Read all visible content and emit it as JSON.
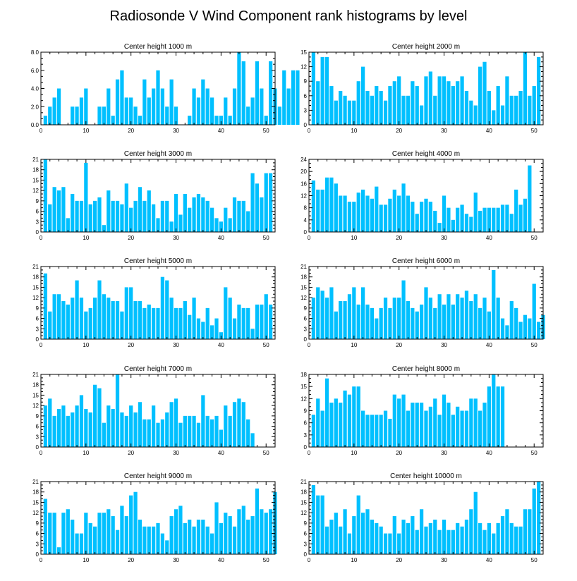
{
  "title": "Radiosonde V Wind Component rank histograms by level",
  "colors": {
    "bar": "#00c0ff",
    "axis": "#000000",
    "background": "#ffffff"
  },
  "chart_data": [
    {
      "type": "bar",
      "title": "Center height 1000 m",
      "x_ticks": [
        0,
        10,
        20,
        30,
        40,
        50
      ],
      "xlim": [
        0,
        52
      ],
      "y_ticks": [
        0,
        2,
        4,
        6,
        8
      ],
      "y_tick_labels": [
        "0.0",
        "2.0",
        "4.0",
        "6.0",
        "8.0"
      ],
      "ylim": [
        0,
        8
      ],
      "values": [
        1,
        2,
        3,
        4,
        0,
        0,
        2,
        2,
        3,
        4,
        0,
        0,
        2,
        2,
        4,
        1,
        5,
        6,
        3,
        3,
        2,
        1,
        5,
        3,
        4,
        6,
        4,
        2,
        5,
        2,
        0,
        0,
        1,
        4,
        3,
        5,
        4,
        3,
        1,
        1,
        3,
        1,
        4,
        8,
        7,
        2,
        3,
        7,
        4,
        1,
        7,
        4,
        2,
        6,
        4,
        6,
        6
      ]
    },
    {
      "type": "bar",
      "title": "Center height 2000 m",
      "x_ticks": [
        0,
        10,
        20,
        30,
        40,
        50
      ],
      "xlim": [
        0,
        52
      ],
      "y_ticks": [
        0,
        3,
        6,
        9,
        12,
        15
      ],
      "y_tick_labels": [
        "0",
        "3",
        "6",
        "9",
        "12",
        "15"
      ],
      "ylim": [
        0,
        15
      ],
      "values": [
        15,
        9,
        14,
        14,
        8,
        5,
        7,
        6,
        5,
        5,
        9,
        12,
        7,
        6,
        8,
        7,
        5,
        8,
        9,
        10,
        6,
        6,
        9,
        8,
        4,
        10,
        11,
        6,
        10,
        10,
        9,
        8,
        9,
        10,
        7,
        5,
        4,
        12,
        13,
        7,
        3,
        8,
        4,
        10,
        6,
        6,
        7,
        15,
        6,
        8,
        14
      ]
    },
    {
      "type": "bar",
      "title": "Center height 3000 m",
      "x_ticks": [
        0,
        10,
        20,
        30,
        40,
        50
      ],
      "xlim": [
        0,
        52
      ],
      "y_ticks": [
        0,
        3,
        6,
        9,
        12,
        15,
        18,
        21
      ],
      "y_tick_labels": [
        "0",
        "3",
        "6",
        "9",
        "12",
        "15",
        "18",
        "21"
      ],
      "ylim": [
        0,
        21
      ],
      "values": [
        21,
        8,
        13,
        12,
        13,
        4,
        11,
        9,
        9,
        20,
        8,
        9,
        10,
        2,
        12,
        9,
        9,
        8,
        14,
        7,
        9,
        13,
        9,
        12,
        8,
        4,
        9,
        9,
        3,
        11,
        5,
        11,
        7,
        10,
        11,
        10,
        9,
        7,
        4,
        3,
        7,
        4,
        10,
        9,
        9,
        6,
        17,
        14,
        10,
        17,
        17
      ]
    },
    {
      "type": "bar",
      "title": "Center height 4000 m",
      "x_ticks": [
        0,
        10,
        20,
        30,
        40,
        50
      ],
      "xlim": [
        0,
        52
      ],
      "y_ticks": [
        0,
        4,
        8,
        12,
        16,
        20,
        24
      ],
      "y_tick_labels": [
        "0",
        "4",
        "8",
        "12",
        "16",
        "20",
        "24"
      ],
      "ylim": [
        0,
        24
      ],
      "values": [
        17,
        14,
        14,
        18,
        18,
        16,
        12,
        12,
        10,
        10,
        13,
        14,
        12,
        11,
        15,
        9,
        9,
        11,
        14,
        12,
        16,
        12,
        10,
        6,
        10,
        11,
        10,
        7,
        3,
        12,
        8,
        4,
        8,
        9,
        6,
        5,
        13,
        7,
        8,
        8,
        8,
        8,
        9,
        9,
        6,
        14,
        9,
        11,
        22
      ]
    },
    {
      "type": "bar",
      "title": "Center height 5000 m",
      "x_ticks": [
        0,
        10,
        20,
        30,
        40,
        50
      ],
      "xlim": [
        0,
        52
      ],
      "y_ticks": [
        0,
        3,
        6,
        9,
        12,
        15,
        18,
        21
      ],
      "y_tick_labels": [
        "0",
        "3",
        "6",
        "9",
        "12",
        "15",
        "18",
        "21"
      ],
      "ylim": [
        0,
        21
      ],
      "values": [
        19,
        8,
        13,
        13,
        11,
        10,
        12,
        17,
        12,
        8,
        9,
        12,
        17,
        13,
        12,
        11,
        11,
        8,
        15,
        15,
        11,
        11,
        9,
        10,
        9,
        9,
        18,
        17,
        12,
        9,
        9,
        11,
        7,
        12,
        6,
        5,
        9,
        4,
        6,
        2,
        15,
        12,
        6,
        10,
        9,
        9,
        3,
        10,
        10,
        13,
        10
      ]
    },
    {
      "type": "bar",
      "title": "Center height 6000 m",
      "x_ticks": [
        0,
        10,
        20,
        30,
        40,
        50
      ],
      "xlim": [
        0,
        52
      ],
      "y_ticks": [
        0,
        3,
        6,
        9,
        12,
        15,
        18,
        21
      ],
      "y_tick_labels": [
        "0",
        "3",
        "6",
        "9",
        "12",
        "15",
        "18",
        "21"
      ],
      "ylim": [
        0,
        21
      ],
      "values": [
        12,
        15,
        14,
        12,
        15,
        8,
        11,
        11,
        13,
        15,
        10,
        15,
        10,
        9,
        6,
        9,
        12,
        9,
        12,
        12,
        17,
        11,
        9,
        8,
        10,
        15,
        12,
        9,
        13,
        10,
        13,
        10,
        13,
        12,
        14,
        11,
        13,
        9,
        12,
        8,
        20,
        12,
        6,
        4,
        11,
        9,
        5,
        7,
        6,
        16,
        5,
        7
      ]
    },
    {
      "type": "bar",
      "title": "Center height 7000 m",
      "x_ticks": [
        0,
        10,
        20,
        30,
        40,
        50
      ],
      "xlim": [
        0,
        52
      ],
      "y_ticks": [
        0,
        3,
        6,
        9,
        12,
        15,
        18,
        21
      ],
      "y_tick_labels": [
        "0",
        "3",
        "6",
        "9",
        "12",
        "15",
        "18",
        "21"
      ],
      "ylim": [
        0,
        21
      ],
      "values": [
        12,
        14,
        9,
        11,
        12,
        9,
        10,
        12,
        15,
        11,
        10,
        18,
        17,
        7,
        12,
        11,
        21,
        10,
        9,
        12,
        10,
        13,
        8,
        8,
        12,
        7,
        8,
        10,
        13,
        14,
        7,
        9,
        9,
        9,
        7,
        15,
        9,
        8,
        9,
        5,
        12,
        9,
        13,
        14,
        13,
        8,
        4
      ]
    },
    {
      "type": "bar",
      "title": "Center height 8000 m",
      "x_ticks": [
        0,
        10,
        20,
        30,
        40,
        50
      ],
      "xlim": [
        0,
        52
      ],
      "y_ticks": [
        0,
        3,
        6,
        9,
        12,
        15,
        18
      ],
      "y_tick_labels": [
        "0",
        "3",
        "6",
        "9",
        "12",
        "15",
        "18"
      ],
      "ylim": [
        0,
        18
      ],
      "values": [
        8,
        12,
        9,
        17,
        11,
        12,
        11,
        14,
        13,
        15,
        15,
        9,
        8,
        8,
        8,
        8,
        9,
        7,
        13,
        12,
        13,
        9,
        11,
        11,
        11,
        9,
        10,
        12,
        8,
        13,
        11,
        8,
        10,
        9,
        9,
        12,
        12,
        9,
        11,
        15,
        18,
        15,
        15
      ]
    },
    {
      "type": "bar",
      "title": "Center height 9000 m",
      "x_ticks": [
        0,
        10,
        20,
        30,
        40,
        50
      ],
      "xlim": [
        0,
        52
      ],
      "y_ticks": [
        0,
        3,
        6,
        9,
        12,
        15,
        18,
        21
      ],
      "y_tick_labels": [
        "0",
        "3",
        "6",
        "9",
        "12",
        "15",
        "18",
        "21"
      ],
      "ylim": [
        0,
        21
      ],
      "values": [
        16,
        12,
        12,
        2,
        12,
        13,
        10,
        6,
        6,
        12,
        9,
        8,
        12,
        12,
        13,
        11,
        7,
        14,
        11,
        17,
        18,
        10,
        8,
        8,
        8,
        9,
        6,
        4,
        11,
        13,
        14,
        9,
        10,
        8,
        10,
        10,
        8,
        6,
        15,
        9,
        12,
        11,
        8,
        13,
        14,
        10,
        11,
        19,
        13,
        12,
        13,
        18
      ]
    },
    {
      "type": "bar",
      "title": "Center height 10000 m",
      "x_ticks": [
        0,
        10,
        20,
        30,
        40,
        50
      ],
      "xlim": [
        0,
        52
      ],
      "y_ticks": [
        0,
        3,
        6,
        9,
        12,
        15,
        18,
        21
      ],
      "y_tick_labels": [
        "0",
        "3",
        "6",
        "9",
        "12",
        "15",
        "18",
        "21"
      ],
      "ylim": [
        0,
        21
      ],
      "values": [
        20,
        17,
        17,
        8,
        10,
        12,
        8,
        13,
        6,
        11,
        17,
        12,
        13,
        10,
        9,
        8,
        6,
        6,
        11,
        6,
        10,
        9,
        11,
        7,
        13,
        8,
        9,
        10,
        7,
        10,
        7,
        7,
        9,
        8,
        10,
        13,
        18,
        9,
        7,
        9,
        6,
        9,
        11,
        13,
        9,
        8,
        8,
        13,
        13,
        19,
        21
      ]
    }
  ]
}
